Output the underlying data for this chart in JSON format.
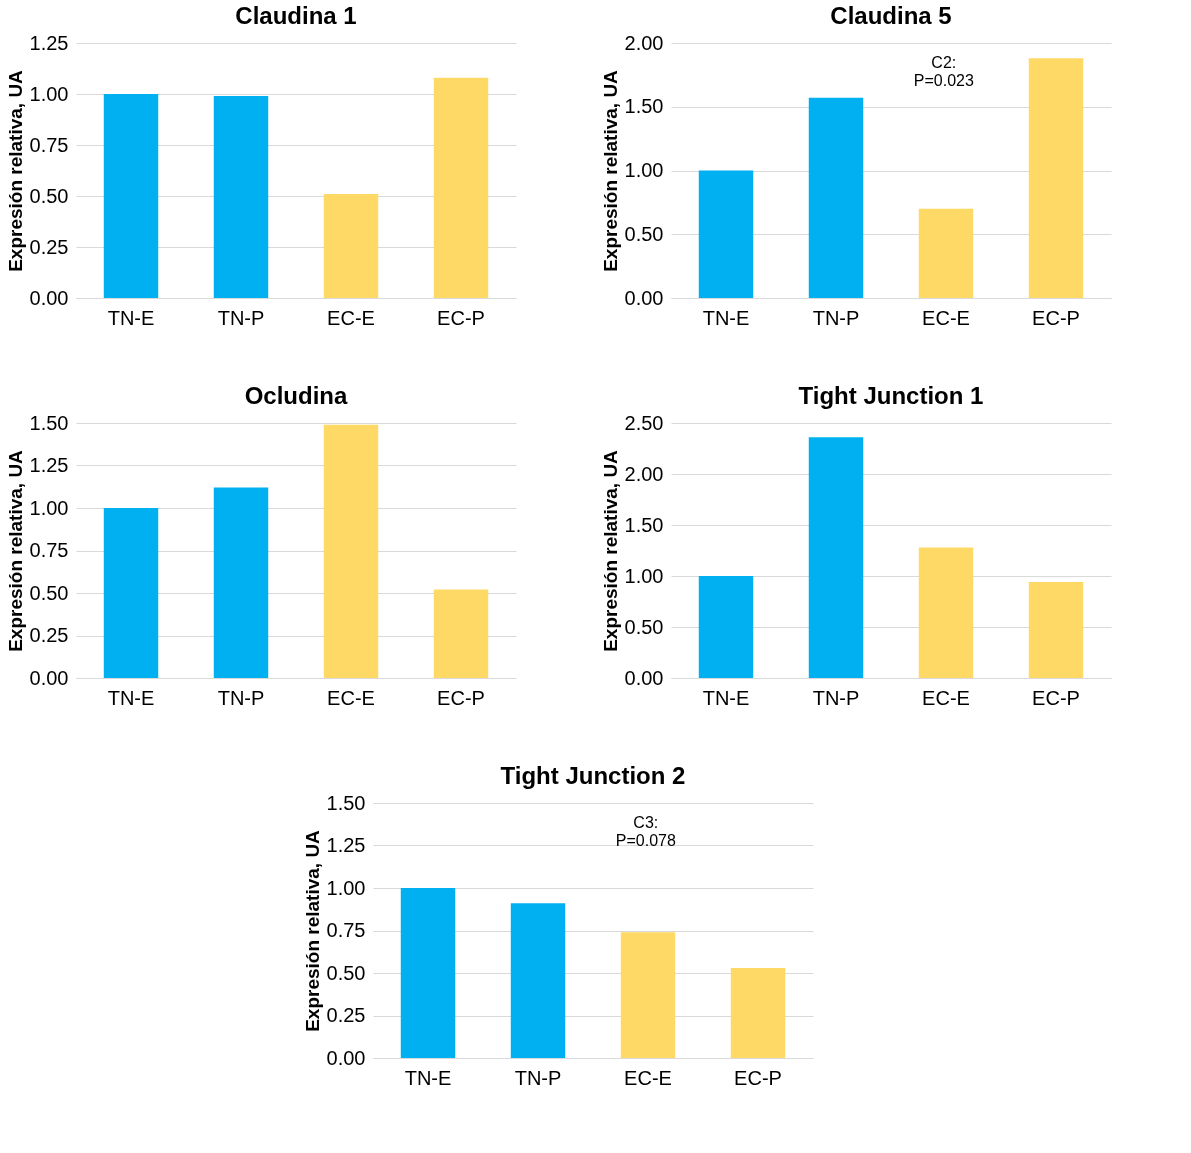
{
  "chart_data": [
    {
      "type": "bar",
      "title": "Claudina 1",
      "ylabel": "Expresión relativa, UA",
      "categories": [
        "TN-E",
        "TN-P",
        "EC-E",
        "EC-P"
      ],
      "values": [
        1.0,
        0.99,
        0.51,
        1.08
      ],
      "colors": [
        "#00b0f0",
        "#00b0f0",
        "#ffd966",
        "#ffd966"
      ],
      "ylim": [
        0,
        1.25
      ],
      "yticks": [
        {
          "value": 0,
          "label": "0.00"
        },
        {
          "value": 0.25,
          "label": "0.25"
        },
        {
          "value": 0.5,
          "label": "0.50"
        },
        {
          "value": 0.75,
          "label": "0.75"
        },
        {
          "value": 1,
          "label": "1.00"
        },
        {
          "value": 1.25,
          "label": "1.25"
        }
      ],
      "grid": "y"
    },
    {
      "type": "bar",
      "title": "Claudina 5",
      "ylabel": "Expresión relativa, UA",
      "categories": [
        "TN-E",
        "TN-P",
        "EC-E",
        "EC-P"
      ],
      "values": [
        1.0,
        1.57,
        0.7,
        1.88
      ],
      "colors": [
        "#00b0f0",
        "#00b0f0",
        "#ffd966",
        "#ffd966"
      ],
      "ylim": [
        0,
        2
      ],
      "yticks": [
        {
          "value": 0,
          "label": "0.00"
        },
        {
          "value": 0.5,
          "label": "0.50"
        },
        {
          "value": 1,
          "label": "1.00"
        },
        {
          "value": 1.5,
          "label": "1.50"
        },
        {
          "value": 2,
          "label": "2.00"
        }
      ],
      "grid": "y",
      "annotations": [
        "C2:\nP=0.023"
      ]
    },
    {
      "type": "bar",
      "title": "Ocludina",
      "ylabel": "Expresión relativa, UA",
      "categories": [
        "TN-E",
        "TN-P",
        "EC-E",
        "EC-P"
      ],
      "values": [
        1.0,
        1.12,
        1.49,
        0.52
      ],
      "colors": [
        "#00b0f0",
        "#00b0f0",
        "#ffd966",
        "#ffd966"
      ],
      "ylim": [
        0,
        1.5
      ],
      "yticks": [
        {
          "value": 0,
          "label": "0.00"
        },
        {
          "value": 0.25,
          "label": "0.25"
        },
        {
          "value": 0.5,
          "label": "0.50"
        },
        {
          "value": 0.75,
          "label": "0.75"
        },
        {
          "value": 1,
          "label": "1.00"
        },
        {
          "value": 1.25,
          "label": "1.25"
        },
        {
          "value": 1.5,
          "label": "1.50"
        }
      ],
      "grid": "y"
    },
    {
      "type": "bar",
      "title": "Tight Junction 1",
      "ylabel": "Expresión relativa, UA",
      "categories": [
        "TN-E",
        "TN-P",
        "EC-E",
        "EC-P"
      ],
      "values": [
        1.0,
        2.36,
        1.28,
        0.94
      ],
      "colors": [
        "#00b0f0",
        "#00b0f0",
        "#ffd966",
        "#ffd966"
      ],
      "ylim": [
        0,
        2.5
      ],
      "yticks": [
        {
          "value": 0,
          "label": "0.00"
        },
        {
          "value": 0.5,
          "label": "0.50"
        },
        {
          "value": 1,
          "label": "1.00"
        },
        {
          "value": 1.5,
          "label": "1.50"
        },
        {
          "value": 2,
          "label": "2.00"
        },
        {
          "value": 2.5,
          "label": "2.50"
        }
      ],
      "grid": "y"
    },
    {
      "type": "bar",
      "title": "Tight Junction 2",
      "ylabel": "Expresión relativa, UA",
      "categories": [
        "TN-E",
        "TN-P",
        "EC-E",
        "EC-P"
      ],
      "values": [
        1.0,
        0.91,
        0.74,
        0.53
      ],
      "colors": [
        "#00b0f0",
        "#00b0f0",
        "#ffd966",
        "#ffd966"
      ],
      "ylim": [
        0,
        1.5
      ],
      "yticks": [
        {
          "value": 0,
          "label": "0.00"
        },
        {
          "value": 0.25,
          "label": "0.25"
        },
        {
          "value": 0.5,
          "label": "0.50"
        },
        {
          "value": 0.75,
          "label": "0.75"
        },
        {
          "value": 1,
          "label": "1.00"
        },
        {
          "value": 1.25,
          "label": "1.25"
        },
        {
          "value": 1.5,
          "label": "1.50"
        }
      ],
      "grid": "y",
      "annotations": [
        "C3:\nP=0.078"
      ]
    }
  ]
}
